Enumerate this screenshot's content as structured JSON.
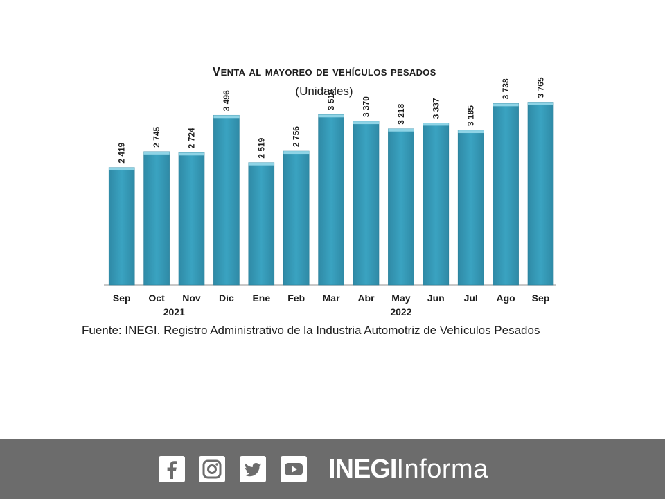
{
  "chart_data": {
    "type": "bar",
    "title": "Venta al mayoreo de vehículos pesados",
    "subtitle": "(Unidades)",
    "categories": [
      "Sep",
      "Oct",
      "Nov",
      "Dic",
      "Ene",
      "Feb",
      "Mar",
      "Abr",
      "May",
      "Jun",
      "Jul",
      "Ago",
      "Sep"
    ],
    "values": [
      2419,
      2745,
      2724,
      3496,
      2519,
      2756,
      3510,
      3370,
      3218,
      3337,
      3185,
      3738,
      3765
    ],
    "value_labels": [
      "2 419",
      "2 745",
      "2 724",
      "3 496",
      "2 519",
      "2 756",
      "3 510",
      "3 370",
      "3 218",
      "3 337",
      "3 185",
      "3 738",
      "3 765"
    ],
    "year_groups": [
      {
        "label": "2021",
        "from": 0,
        "to": 3
      },
      {
        "label": "2022",
        "from": 4,
        "to": 12
      }
    ],
    "ylim": [
      0,
      4000
    ],
    "grid": false,
    "bar_color": "#3a9fbd",
    "bar_top_color": "#8fd4e6"
  },
  "source": "Fuente: INEGI. Registro Administrativo de la Industria Automotriz de Vehículos Pesados",
  "footer": {
    "social_icons": [
      "facebook-icon",
      "instagram-icon",
      "twitter-icon",
      "youtube-icon"
    ],
    "brand_bold": "INEGI",
    "brand_light": "Informa",
    "background": "#6c6c6c"
  }
}
